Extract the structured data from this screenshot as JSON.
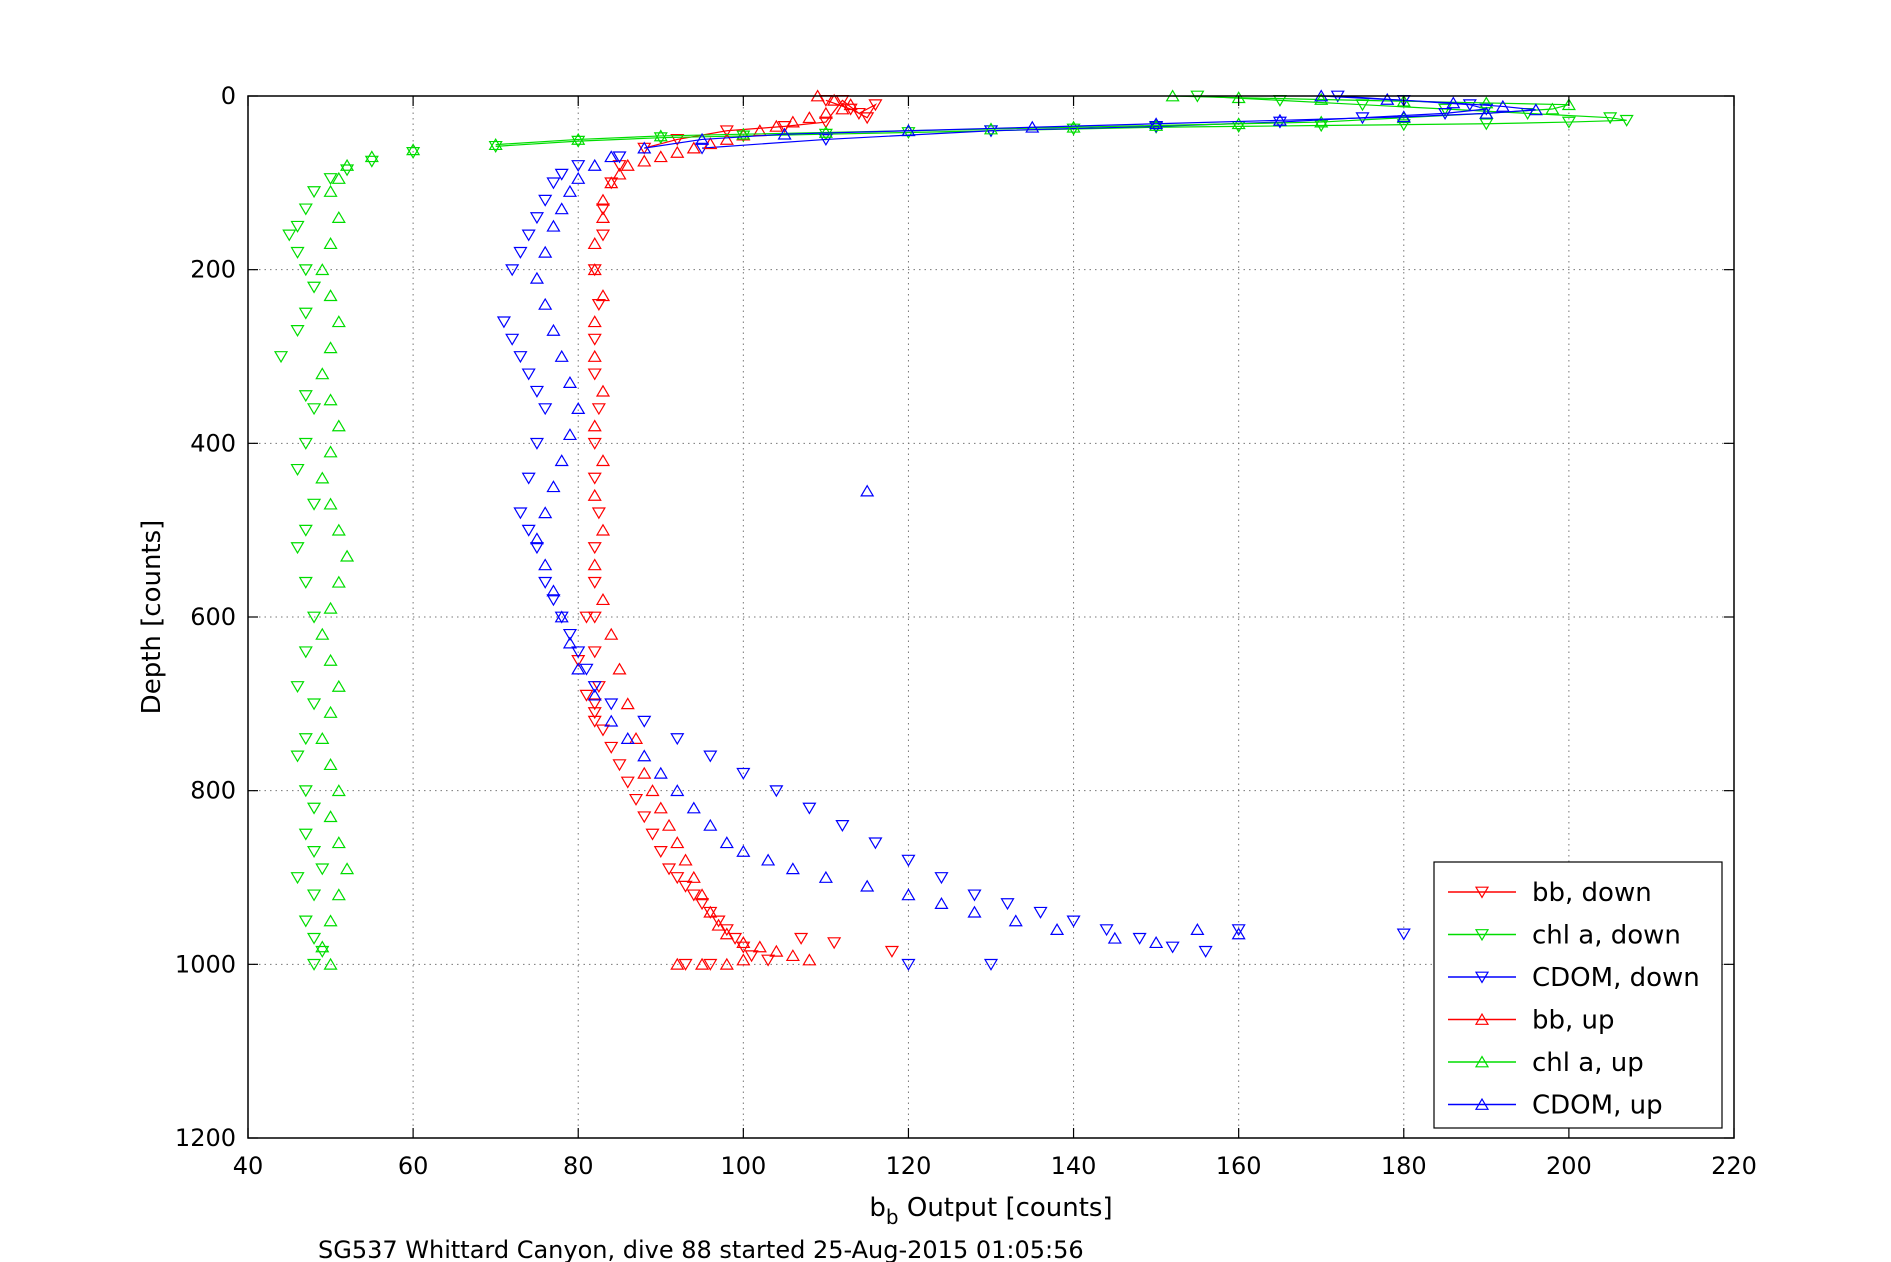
{
  "chart_data": {
    "type": "scatter",
    "xlabel_main": "b",
    "xlabel_sub": "b",
    "xlabel_rest": " Output [counts]",
    "ylabel": "Depth [counts]",
    "caption": "SG537 Whittard Canyon, dive 88 started 25-Aug-2015 01:05:56",
    "xlim": [
      40,
      220
    ],
    "ylim": [
      0,
      1200
    ],
    "y_reversed": true,
    "grid": true,
    "grid_style": "dotted",
    "legend_position": "bottom-right",
    "x_ticks": [
      "40",
      "60",
      "80",
      "100",
      "120",
      "140",
      "160",
      "180",
      "200",
      "220"
    ],
    "y_ticks": [
      "0",
      "200",
      "400",
      "600",
      "800",
      "1000",
      "1200"
    ],
    "series": [
      {
        "name": "bb, down",
        "color": "#ff0000",
        "marker": "triangle-down",
        "connected": "surface",
        "x": [
          110,
          113,
          115,
          116,
          114,
          112,
          110,
          105,
          98,
          92,
          88,
          85,
          84,
          83,
          83,
          82,
          82.5,
          82,
          82,
          82.5,
          82,
          82,
          82.5,
          82,
          82,
          82,
          82,
          82.5,
          82,
          82,
          81,
          80,
          81,
          82,
          83,
          84,
          85,
          86,
          87,
          88,
          89,
          90,
          91,
          92,
          93,
          94,
          95,
          96,
          97,
          98,
          99,
          100,
          101,
          103,
          107,
          111,
          118,
          96,
          93
        ],
        "y": [
          5,
          15,
          25,
          10,
          20,
          5,
          30,
          35,
          40,
          50,
          60,
          80,
          100,
          130,
          160,
          200,
          240,
          280,
          320,
          360,
          400,
          440,
          480,
          520,
          560,
          600,
          640,
          680,
          700,
          720,
          600,
          650,
          690,
          710,
          730,
          750,
          770,
          790,
          810,
          830,
          850,
          870,
          890,
          900,
          910,
          920,
          930,
          940,
          950,
          960,
          970,
          980,
          990,
          995,
          970,
          975,
          985,
          1000,
          1000
        ]
      },
      {
        "name": "chl a, down",
        "color": "#00dd00",
        "marker": "triangle-down",
        "connected": "surface",
        "x": [
          155,
          165,
          175,
          185,
          195,
          205,
          207,
          200,
          190,
          180,
          170,
          160,
          150,
          140,
          130,
          120,
          110,
          100,
          90,
          80,
          70,
          60,
          55,
          52,
          50,
          48,
          47,
          46,
          45,
          46,
          47,
          48,
          47,
          46,
          44,
          47,
          48,
          47,
          46,
          48,
          47,
          46,
          47,
          48,
          47,
          46,
          48,
          47,
          46,
          47,
          48,
          47,
          48,
          49,
          48,
          47,
          46,
          48,
          49,
          48
        ],
        "y": [
          0,
          5,
          10,
          15,
          20,
          25,
          28,
          30,
          32,
          33,
          34,
          35,
          36,
          38,
          40,
          42,
          44,
          46,
          48,
          52,
          58,
          65,
          75,
          85,
          95,
          110,
          130,
          150,
          160,
          180,
          200,
          220,
          250,
          270,
          300,
          345,
          360,
          400,
          430,
          470,
          500,
          520,
          560,
          600,
          640,
          680,
          700,
          740,
          760,
          800,
          820,
          850,
          870,
          890,
          920,
          950,
          900,
          970,
          985,
          1000
        ]
      },
      {
        "name": "CDOM, down",
        "color": "#0000ff",
        "marker": "triangle-down",
        "connected": "surface",
        "x": [
          172,
          180,
          188,
          190,
          185,
          175,
          165,
          150,
          130,
          110,
          95,
          85,
          80,
          78,
          77,
          76,
          75,
          74,
          73,
          72,
          71,
          72,
          73,
          74,
          75,
          76,
          75,
          74,
          73,
          74,
          75,
          76,
          77,
          78,
          79,
          80,
          81,
          82,
          84,
          88,
          92,
          96,
          100,
          104,
          108,
          112,
          116,
          120,
          124,
          128,
          132,
          136,
          140,
          144,
          148,
          152,
          156,
          160,
          180,
          120,
          130
        ],
        "y": [
          0,
          5,
          10,
          15,
          20,
          25,
          30,
          35,
          40,
          50,
          60,
          70,
          80,
          90,
          100,
          120,
          140,
          160,
          180,
          200,
          260,
          280,
          300,
          320,
          340,
          360,
          400,
          440,
          480,
          500,
          520,
          560,
          580,
          600,
          620,
          640,
          660,
          680,
          700,
          720,
          740,
          760,
          780,
          800,
          820,
          840,
          860,
          880,
          900,
          920,
          930,
          940,
          950,
          960,
          970,
          980,
          985,
          960,
          965,
          1000,
          1000
        ]
      },
      {
        "name": "bb, up",
        "color": "#ff0000",
        "marker": "triangle-up",
        "connected": "none",
        "x": [
          109,
          111,
          113,
          112,
          110,
          108,
          106,
          104,
          102,
          100,
          98,
          96,
          94,
          92,
          90,
          88,
          86,
          85,
          84,
          83,
          83,
          82,
          82,
          83,
          82,
          82,
          83,
          82,
          83,
          82,
          83,
          82,
          83,
          84,
          85,
          86,
          87,
          88,
          89,
          90,
          91,
          92,
          93,
          94,
          95,
          96,
          97,
          98,
          100,
          102,
          104,
          106,
          108,
          92,
          95,
          98,
          100
        ],
        "y": [
          0,
          5,
          10,
          15,
          20,
          25,
          30,
          35,
          40,
          45,
          50,
          55,
          60,
          65,
          70,
          75,
          80,
          90,
          100,
          120,
          140,
          170,
          200,
          230,
          260,
          300,
          340,
          380,
          420,
          460,
          500,
          540,
          580,
          620,
          660,
          700,
          740,
          780,
          800,
          820,
          840,
          860,
          880,
          900,
          920,
          940,
          955,
          965,
          975,
          980,
          985,
          990,
          995,
          1000,
          1000,
          1000,
          995
        ]
      },
      {
        "name": "chl a, up",
        "color": "#00dd00",
        "marker": "triangle-up",
        "connected": "surface",
        "x": [
          152,
          160,
          170,
          180,
          190,
          200,
          198,
          190,
          180,
          170,
          160,
          150,
          140,
          130,
          120,
          110,
          100,
          90,
          80,
          70,
          60,
          55,
          52,
          51,
          50,
          51,
          50,
          49,
          50,
          51,
          50,
          49,
          50,
          51,
          50,
          49,
          50,
          51,
          52,
          51,
          50,
          49,
          50,
          51,
          50,
          49,
          50,
          51,
          50,
          51,
          52,
          51,
          50,
          49,
          50
        ],
        "y": [
          0,
          2,
          4,
          6,
          8,
          10,
          15,
          20,
          25,
          30,
          32,
          34,
          36,
          38,
          40,
          42,
          44,
          46,
          50,
          56,
          62,
          70,
          80,
          95,
          110,
          140,
          170,
          200,
          230,
          260,
          290,
          320,
          350,
          380,
          410,
          440,
          470,
          500,
          530,
          560,
          590,
          620,
          650,
          680,
          710,
          740,
          770,
          800,
          830,
          860,
          890,
          920,
          950,
          980,
          1000
        ]
      },
      {
        "name": "CDOM, up",
        "color": "#0000ff",
        "marker": "triangle-up",
        "connected": "surface",
        "x": [
          170,
          178,
          186,
          192,
          196,
          190,
          180,
          165,
          150,
          135,
          120,
          105,
          95,
          88,
          84,
          82,
          80,
          79,
          78,
          77,
          76,
          75,
          76,
          77,
          78,
          79,
          80,
          79,
          78,
          77,
          76,
          75,
          76,
          77,
          78,
          79,
          80,
          82,
          84,
          86,
          88,
          90,
          92,
          94,
          96,
          98,
          100,
          103,
          106,
          110,
          115,
          120,
          124,
          128,
          133,
          138,
          145,
          150,
          155,
          160,
          115
        ],
        "y": [
          0,
          4,
          8,
          12,
          16,
          20,
          24,
          28,
          32,
          36,
          40,
          44,
          50,
          60,
          70,
          80,
          95,
          110,
          130,
          150,
          180,
          210,
          240,
          270,
          300,
          330,
          360,
          390,
          420,
          450,
          480,
          510,
          540,
          570,
          600,
          630,
          660,
          690,
          720,
          740,
          760,
          780,
          800,
          820,
          840,
          860,
          870,
          880,
          890,
          900,
          910,
          920,
          930,
          940,
          950,
          960,
          970,
          975,
          960,
          965,
          455
        ]
      }
    ]
  }
}
